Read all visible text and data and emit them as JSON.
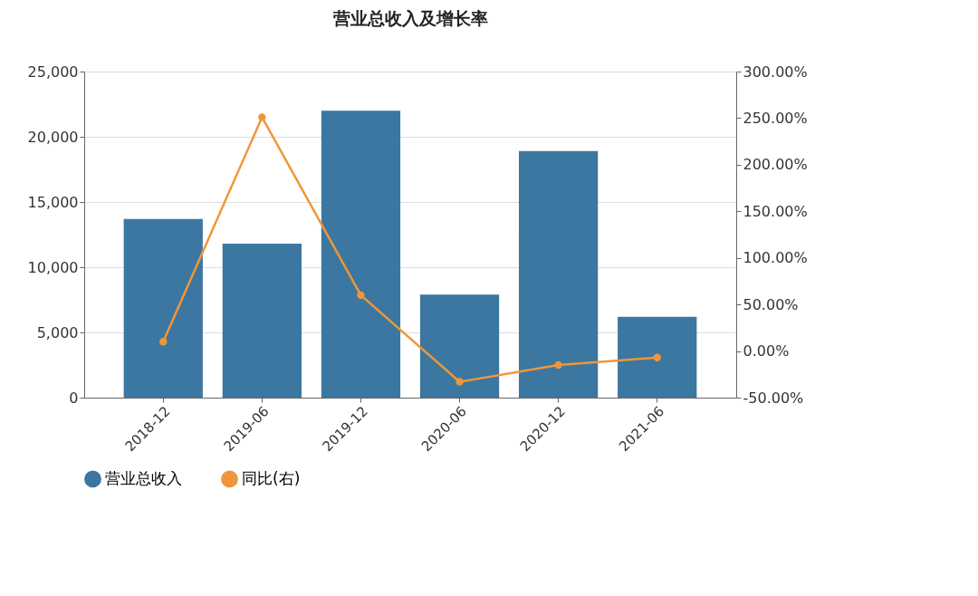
{
  "chart_data": {
    "type": "bar",
    "title": "营业总收入及增长率",
    "categories": [
      "2018-12",
      "2019-06",
      "2019-12",
      "2020-06",
      "2020-12",
      "2021-06"
    ],
    "series": [
      {
        "name": "营业总收入",
        "color": "#3b77a0",
        "values": [
          13700,
          11800,
          22000,
          7900,
          18900,
          6200
        ]
      },
      {
        "name": "同比(右)",
        "type": "line",
        "axis": "y2",
        "color": "#f0963a",
        "values": [
          10,
          251,
          60,
          -33,
          -15,
          -7
        ]
      }
    ],
    "ylim": [
      0,
      25000
    ],
    "yticks": [
      {
        "value": 0,
        "label": "0"
      },
      {
        "value": 5000,
        "label": "5,000"
      },
      {
        "value": 10000,
        "label": "10,000"
      },
      {
        "value": 15000,
        "label": "15,000"
      },
      {
        "value": 20000,
        "label": "20,000"
      },
      {
        "value": 25000,
        "label": "25,000"
      }
    ],
    "y2lim": [
      -50,
      300
    ],
    "y2ticks": [
      {
        "value": -50,
        "label": "-50.00%"
      },
      {
        "value": 0,
        "label": "0.00%"
      },
      {
        "value": 50,
        "label": "50.00%"
      },
      {
        "value": 100,
        "label": "100.00%"
      },
      {
        "value": 150,
        "label": "150.00%"
      },
      {
        "value": 200,
        "label": "200.00%"
      },
      {
        "value": 250,
        "label": "250.00%"
      },
      {
        "value": 300,
        "label": "300.00%"
      }
    ],
    "grid": "y",
    "legend": "bottom",
    "marker": "circle"
  }
}
